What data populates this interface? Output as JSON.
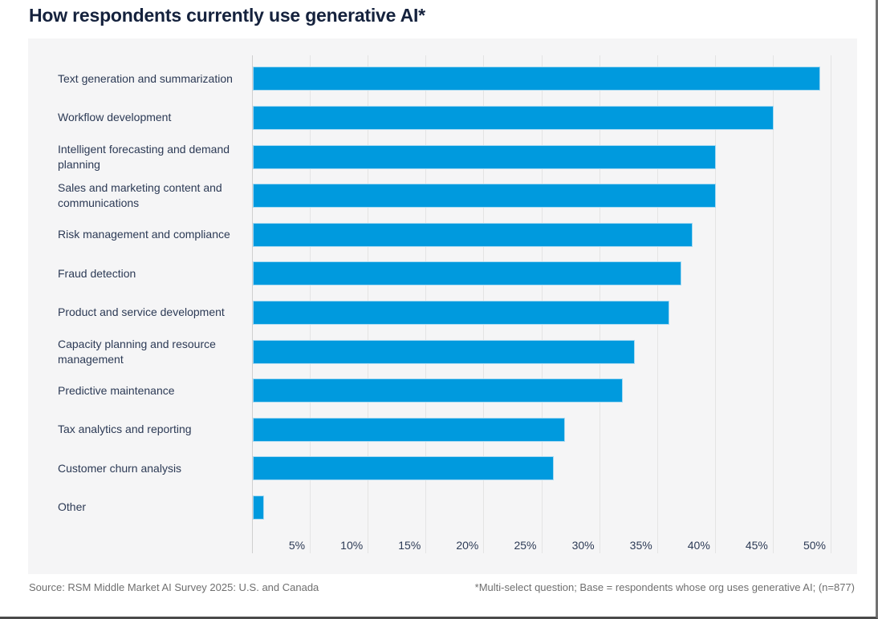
{
  "page": {
    "title": "How respondents currently use generative AI*",
    "footer_left": "Source: RSM Middle Market AI Survey 2025: U.S. and Canada",
    "footer_right": "*Multi-select question; Base = respondents whose org uses generative AI; (n=877)"
  },
  "colors": {
    "bar": "#009ade",
    "bar_edge": "#a6d9f2",
    "panel_background": "#f5f5f6",
    "gridline": "#e4e4e4",
    "axis_line": "#cfcfcf",
    "title_text": "#15223d",
    "label_text": "#2c3a55",
    "footer_text": "#6f6f6f"
  },
  "chart_data": {
    "type": "bar",
    "orientation": "horizontal",
    "title": "How respondents currently use generative AI*",
    "unit": "%",
    "xlim": [
      0,
      50
    ],
    "grid": true,
    "x_ticks": [
      "5%",
      "10%",
      "15%",
      "20%",
      "25%",
      "30%",
      "35%",
      "40%",
      "45%",
      "50%"
    ],
    "categories": [
      "Text generation and summarization",
      "Workflow development",
      "Intelligent forecasting and demand planning",
      "Sales and marketing content and communications",
      "Risk management and compliance",
      "Fraud detection",
      "Product and service development",
      "Capacity planning and resource management",
      "Predictive maintenance",
      "Tax analytics and reporting",
      "Customer churn analysis",
      "Other"
    ],
    "values": [
      49,
      45,
      40,
      40,
      38,
      37,
      36,
      33,
      32,
      27,
      26,
      1
    ]
  }
}
